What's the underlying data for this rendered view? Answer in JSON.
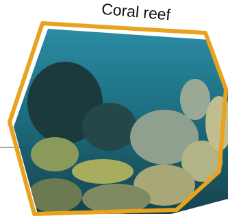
{
  "label": "Coral reef"
}
